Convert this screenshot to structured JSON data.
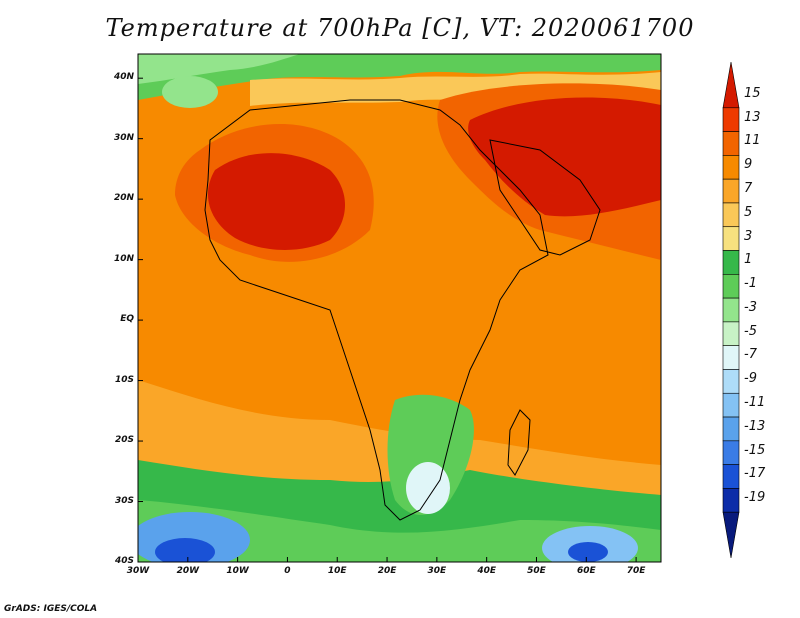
{
  "title": "Temperature at 700hPa [C], VT: 2020061700",
  "credit": "GrADS: IGES/COLA",
  "map": {
    "lon_labels": [
      "30W",
      "20W",
      "10W",
      "0",
      "10E",
      "20E",
      "30E",
      "40E",
      "50E",
      "60E",
      "70E"
    ],
    "lat_labels": [
      "40N",
      "30N",
      "20N",
      "10N",
      "EQ",
      "10S",
      "20S",
      "30S",
      "40S"
    ],
    "lon_range": [
      -30,
      75
    ],
    "lat_range": [
      -40,
      44
    ]
  },
  "colorbar": {
    "labels": [
      "15",
      "13",
      "11",
      "9",
      "7",
      "5",
      "3",
      "1",
      "-1",
      "-3",
      "-5",
      "-7",
      "-9",
      "-11",
      "-13",
      "-15",
      "-17",
      "-19"
    ],
    "colors": [
      "#d41a00",
      "#ee3a00",
      "#f26400",
      "#f78a00",
      "#faa628",
      "#fac858",
      "#f7e17f",
      "#36b84a",
      "#5ecc58",
      "#93e48c",
      "#c8f2c6",
      "#e0f6f8",
      "#aedcf8",
      "#84c2f4",
      "#5aa2ec",
      "#3a7ce6",
      "#1a52d6",
      "#0c2ca8",
      "#081a7c"
    ]
  }
}
